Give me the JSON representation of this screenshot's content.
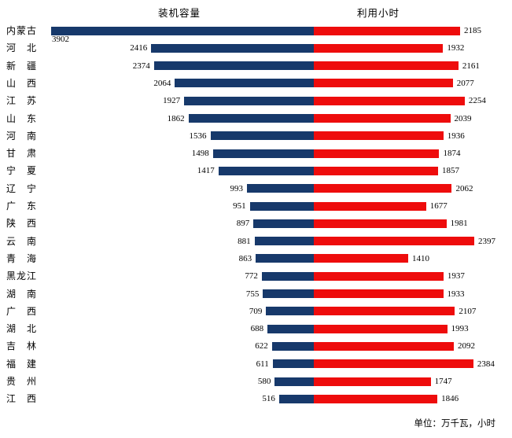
{
  "header": {
    "left_title": "装机容量",
    "right_title": "利用小时"
  },
  "footer": {
    "unit_note": "单位：万千瓦，小时"
  },
  "colors": {
    "capacity_bar": "#17396B",
    "hours_bar": "#EE0C0C",
    "text": "#000000"
  },
  "chart_data": {
    "type": "bar",
    "variant": "tornado",
    "orientation": "horizontal",
    "title": "",
    "left_series_label": "装机容量",
    "right_series_label": "利用小时",
    "unit": "万千瓦，小时",
    "legend_position": "top",
    "grid": false,
    "value_labels": true,
    "left_axis_max": 3902,
    "right_axis_max": 2397,
    "categories": [
      "内蒙古",
      "河北",
      "新疆",
      "山西",
      "江苏",
      "山东",
      "河南",
      "甘肃",
      "宁夏",
      "辽宁",
      "广东",
      "陕西",
      "云南",
      "青海",
      "黑龙江",
      "湖南",
      "广西",
      "湖北",
      "吉林",
      "福建",
      "贵州",
      "江西"
    ],
    "series": [
      {
        "name": "装机容量",
        "values": [
          3902,
          2416,
          2374,
          2064,
          1927,
          1862,
          1536,
          1498,
          1417,
          993,
          951,
          897,
          881,
          863,
          772,
          755,
          709,
          688,
          622,
          611,
          580,
          516
        ]
      },
      {
        "name": "利用小时",
        "values": [
          2185,
          1932,
          2161,
          2077,
          2254,
          2039,
          1936,
          1874,
          1857,
          2062,
          1677,
          1981,
          2397,
          1410,
          1937,
          1933,
          2107,
          1993,
          2092,
          2384,
          1747,
          1846
        ]
      }
    ]
  }
}
